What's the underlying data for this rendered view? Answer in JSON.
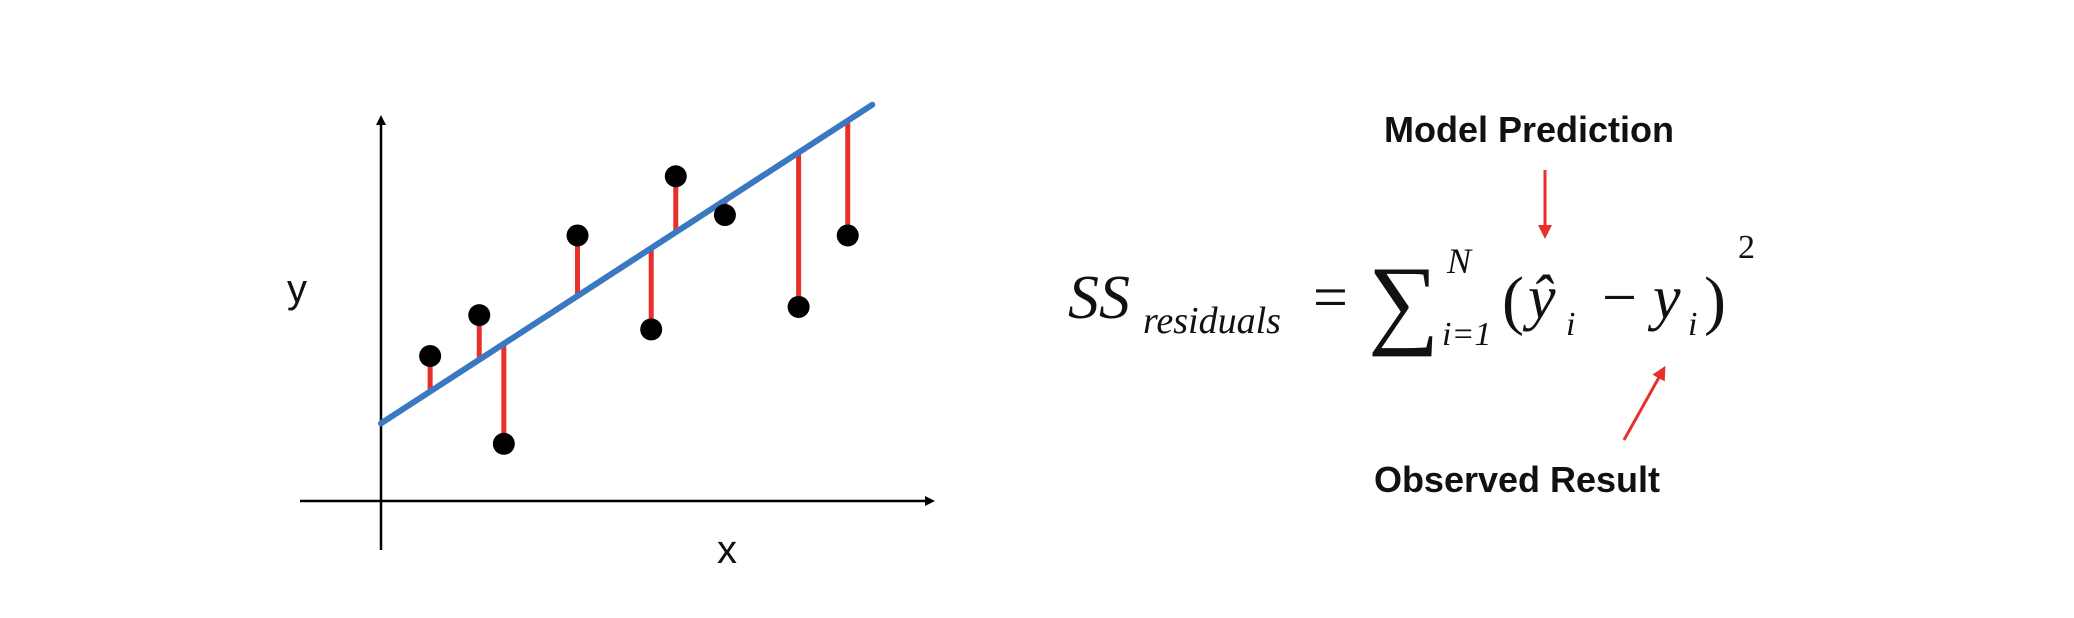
{
  "chart_data": {
    "type": "scatter",
    "xlabel": "x",
    "ylabel": "y",
    "trend_line": {
      "intercept": 0.7,
      "slope": 0.78
    },
    "x": [
      1.0,
      2.5,
      2.0,
      4.0,
      5.5,
      6.0,
      7.0,
      8.5,
      9.5
    ],
    "y": [
      2.35,
      0.2,
      3.35,
      5.3,
      3.0,
      6.75,
      5.8,
      3.55,
      5.3
    ],
    "xlim": [
      0,
      11.5
    ],
    "ylim": [
      -1.2,
      8.2
    ],
    "colors": {
      "points": "#000000",
      "trend": "#3a78c2",
      "residual": "#e8302a"
    }
  },
  "equation": {
    "lhs_main": "SS",
    "lhs_sub": "residuals",
    "equals": "=",
    "sigma": "∑",
    "upper_limit": "N",
    "lower_limit": "i=1",
    "open_paren": "(",
    "pred_var": "ŷ",
    "pred_sub": "i",
    "minus": "−",
    "obs_var": "y",
    "obs_sub": "i",
    "close_paren": ")",
    "exponent": "2"
  },
  "annotations": {
    "prediction_label": "Model Prediction",
    "observed_label": "Observed Result",
    "arrow_color": "#e8302a"
  }
}
